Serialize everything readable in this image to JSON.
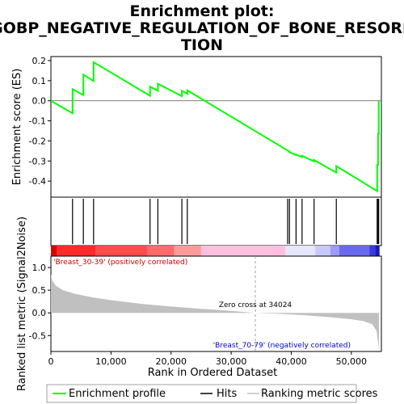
{
  "chart_data": {
    "type": "line",
    "title_lines": [
      "Enrichment plot:",
      "GOBP_NEGATIVE_REGULATION_OF_BONE_RESORP",
      "TION"
    ],
    "top_panel": {
      "ylabel": "Enrichment score (ES)",
      "ylim": [
        -0.48,
        0.22
      ],
      "yticks": [
        0.2,
        0.1,
        0.0,
        -0.1,
        -0.2,
        -0.3,
        -0.4
      ],
      "ytick_labels": [
        "0.2",
        "0.1",
        "0.0",
        "-0.1",
        "-0.2",
        "-0.3",
        "-0.4"
      ],
      "line_color": "#00ff00",
      "es_profile": [
        [
          0,
          0.0
        ],
        [
          3600,
          -0.062
        ],
        [
          3600,
          0.058
        ],
        [
          5400,
          0.028
        ],
        [
          5400,
          0.13
        ],
        [
          7100,
          0.098
        ],
        [
          7100,
          0.192
        ],
        [
          16500,
          0.025
        ],
        [
          16500,
          0.07
        ],
        [
          17800,
          0.05
        ],
        [
          17800,
          0.085
        ],
        [
          21800,
          0.023
        ],
        [
          21800,
          0.05
        ],
        [
          22700,
          0.035
        ],
        [
          22700,
          0.052
        ],
        [
          39400,
          -0.248
        ],
        [
          39700,
          -0.252
        ],
        [
          39700,
          -0.256
        ],
        [
          40800,
          -0.27
        ],
        [
          40800,
          -0.268
        ],
        [
          41800,
          -0.28
        ],
        [
          41800,
          -0.274
        ],
        [
          43800,
          -0.302
        ],
        [
          43800,
          -0.295
        ],
        [
          47500,
          -0.358
        ],
        [
          47500,
          -0.325
        ],
        [
          54300,
          -0.45
        ],
        [
          54300,
          -0.32
        ],
        [
          54450,
          -0.32
        ],
        [
          54450,
          -0.165
        ],
        [
          54550,
          -0.165
        ],
        [
          54550,
          0.0
        ]
      ]
    },
    "hits": [
      3600,
      5400,
      7100,
      16500,
      17800,
      21800,
      22700,
      39400,
      39700,
      40800,
      41800,
      43800,
      47500,
      54300,
      54450,
      54550
    ],
    "bottom_panel": {
      "ylabel": "Ranked list metric (Signal2Noise)",
      "xlabel": "Rank in Ordered Dataset",
      "ylim": [
        -0.85,
        1.25
      ],
      "yticks": [
        1.0,
        0.5,
        0.0,
        -0.5
      ],
      "ytick_labels": [
        "1.0",
        "0.5",
        "0.0",
        "-0.5"
      ],
      "fill_color": "#c0c0c0",
      "metric_profile": [
        [
          0,
          0.85
        ],
        [
          200,
          0.72
        ],
        [
          800,
          0.6
        ],
        [
          2000,
          0.5
        ],
        [
          4000,
          0.42
        ],
        [
          7000,
          0.34
        ],
        [
          10000,
          0.28
        ],
        [
          15000,
          0.2
        ],
        [
          20000,
          0.14
        ],
        [
          25000,
          0.09
        ],
        [
          30000,
          0.045
        ],
        [
          34024,
          0.0
        ],
        [
          38000,
          -0.02
        ],
        [
          42000,
          -0.05
        ],
        [
          46000,
          -0.09
        ],
        [
          50000,
          -0.14
        ],
        [
          52000,
          -0.18
        ],
        [
          53500,
          -0.25
        ],
        [
          54200,
          -0.4
        ],
        [
          54600,
          -0.8
        ]
      ],
      "zero_cross_label": "Zero cross at 34024",
      "zero_cross": 34024,
      "pos_label": "'Breast_30-39' (positively correlated)",
      "pos_label_color": "#cc0000",
      "neg_label": "'Breast_70-79' (negatively correlated)",
      "neg_label_color": "#0000cc"
    },
    "xlim": [
      0,
      55000
    ],
    "xticks": [
      0,
      10000,
      20000,
      30000,
      40000,
      50000
    ],
    "xtick_labels": [
      "0",
      "10,000",
      "20,000",
      "30,000",
      "40,000",
      "50,000"
    ],
    "color_bar_segments": [
      [
        0,
        1000,
        "#dd0000"
      ],
      [
        1000,
        7500,
        "#ff2a2a"
      ],
      [
        7500,
        16000,
        "#ff4c4c"
      ],
      [
        16000,
        20500,
        "#ff6a6a"
      ],
      [
        20500,
        25000,
        "#ff9a9a"
      ],
      [
        25000,
        39000,
        "#ffc0e0"
      ],
      [
        39000,
        44000,
        "#e6e6ff"
      ],
      [
        44000,
        46500,
        "#c8c8ff"
      ],
      [
        46500,
        48000,
        "#9a9aff"
      ],
      [
        48000,
        53000,
        "#6a6aee"
      ],
      [
        53000,
        54000,
        "#3a3add"
      ],
      [
        54000,
        54700,
        "#1a1ab0"
      ]
    ],
    "legend": [
      {
        "label": "Enrichment profile",
        "color": "#00ff00"
      },
      {
        "label": "Hits",
        "color": "#000000"
      },
      {
        "label": "Ranking metric scores",
        "color": "#c0c0c0"
      }
    ]
  }
}
